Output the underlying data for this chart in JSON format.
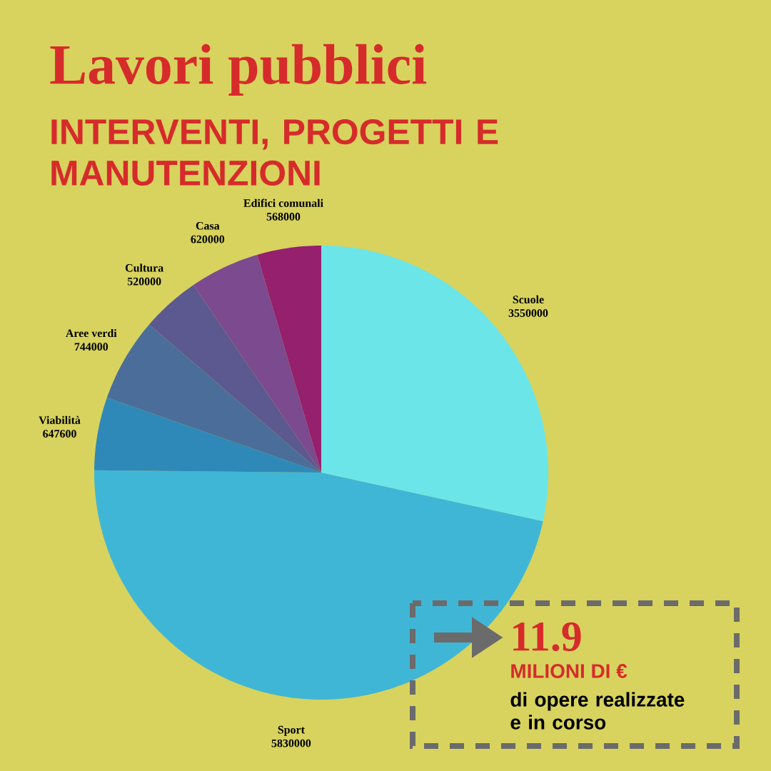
{
  "chart_data": {
    "type": "pie",
    "title": "Lavori pubblici",
    "subtitle": "INTERVENTI, PROGETTI E MANUTENZIONI",
    "categories": [
      "Scuole",
      "Sport",
      "Viabilità",
      "Aree verdi",
      "Cultura",
      "Casa",
      "Edifici comunali"
    ],
    "values": [
      3550000,
      5830000,
      647600,
      744000,
      520000,
      620000,
      568000
    ],
    "colors": [
      "#6ce5e8",
      "#40b6d6",
      "#2e89b8",
      "#4a6e99",
      "#5c5890",
      "#7b4a8f",
      "#95206e"
    ],
    "data_labels": true,
    "annotations": [
      "11.9",
      "MILIONI DI €",
      "di opere realizzate e in corso"
    ]
  }
}
